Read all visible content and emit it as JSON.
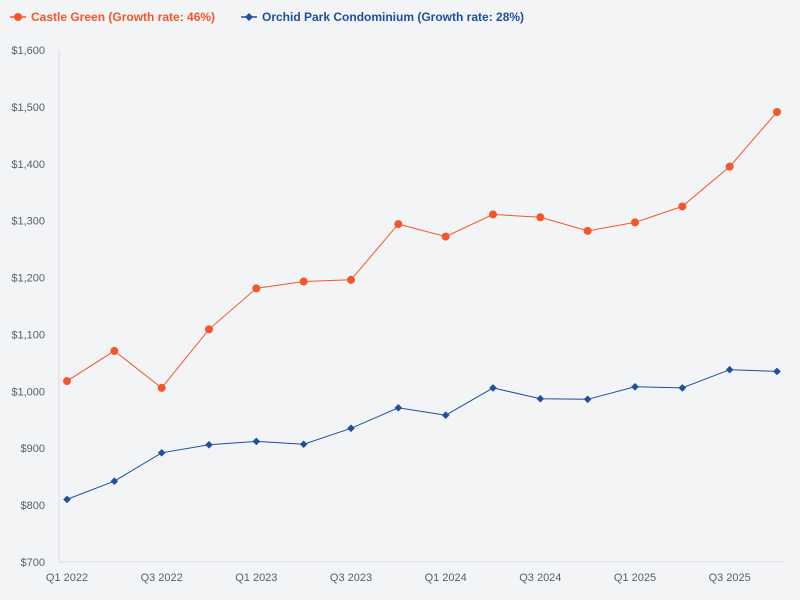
{
  "chart_data": {
    "type": "line",
    "title": "",
    "xlabel": "",
    "ylabel": "",
    "ylim": [
      700,
      1600
    ],
    "yticks": [
      700,
      800,
      900,
      1000,
      1100,
      1200,
      1300,
      1400,
      1500,
      1600
    ],
    "ytick_labels": [
      "$700",
      "$800",
      "$900",
      "$1,000",
      "$1,100",
      "$1,200",
      "$1,300",
      "$1,400",
      "$1,500",
      "$1,600"
    ],
    "categories": [
      "Q1 2022",
      "Q2 2022",
      "Q3 2022",
      "Q4 2022",
      "Q1 2023",
      "Q2 2023",
      "Q3 2023",
      "Q4 2023",
      "Q1 2024",
      "Q2 2024",
      "Q3 2024",
      "Q4 2024",
      "Q1 2025",
      "Q2 2025",
      "Q3 2025",
      "Q4 2025"
    ],
    "xtick_labels": [
      "Q1 2022",
      "Q3 2022",
      "Q1 2023",
      "Q3 2023",
      "Q1 2024",
      "Q3 2024",
      "Q1 2025",
      "Q3 2025"
    ],
    "legend_position": "top-left",
    "grid": false,
    "series": [
      {
        "name": "Castle Green (Growth rate: 46%)",
        "color": "#f4562a",
        "marker": "circle",
        "values": [
          1018,
          1071,
          1006,
          1109,
          1181,
          1193,
          1196,
          1294,
          1272,
          1311,
          1306,
          1282,
          1297,
          1325,
          1395,
          1491
        ]
      },
      {
        "name": "Orchid Park Condominium (Growth rate: 28%)",
        "color": "#1e4fa0",
        "marker": "diamond",
        "values": [
          810,
          842,
          892,
          906,
          912,
          907,
          935,
          971,
          958,
          1006,
          987,
          986,
          1008,
          1006,
          1038,
          1035
        ]
      }
    ]
  }
}
